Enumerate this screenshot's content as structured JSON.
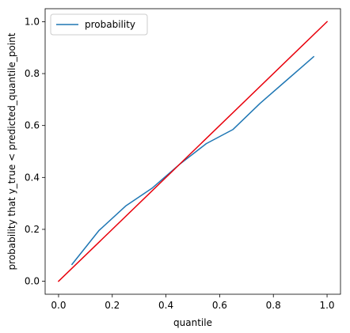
{
  "chart_data": {
    "type": "line",
    "title": "",
    "xlabel": "quantile",
    "ylabel": "probability that y_true < predicted_quantile_point",
    "xlim": [
      -0.05,
      1.05
    ],
    "ylim": [
      -0.05,
      1.05
    ],
    "xticks": [
      "0.0",
      "0.2",
      "0.4",
      "0.6",
      "0.8",
      "1.0"
    ],
    "yticks": [
      "0.0",
      "0.2",
      "0.4",
      "0.6",
      "0.8",
      "1.0"
    ],
    "grid": false,
    "legend": {
      "placement": "top-left",
      "entries": [
        "probability"
      ]
    },
    "series": [
      {
        "name": "probability",
        "color": "#1f77b4",
        "x": [
          0.05,
          0.15,
          0.25,
          0.35,
          0.45,
          0.55,
          0.65,
          0.75,
          0.85,
          0.95
        ],
        "y": [
          0.065,
          0.195,
          0.29,
          0.36,
          0.45,
          0.53,
          0.585,
          0.685,
          0.775,
          0.865
        ]
      },
      {
        "color": "#e8000b",
        "x": [
          0.0,
          1.0
        ],
        "y": [
          0.0,
          1.0
        ]
      }
    ]
  }
}
